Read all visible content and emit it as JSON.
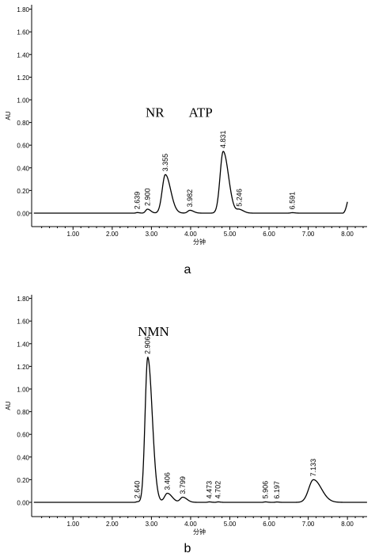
{
  "chart_data": [
    {
      "type": "line",
      "panel_label": "a",
      "xlabel": "分钟",
      "ylabel": "AU",
      "xlim": [
        0.0,
        8.5
      ],
      "ylim": [
        0.0,
        1.8
      ],
      "xticks": [
        "1.00",
        "2.00",
        "3.00",
        "4.00",
        "5.00",
        "6.00",
        "7.00",
        "8.00"
      ],
      "yticks": [
        "0.00",
        "0.20",
        "0.40",
        "0.60",
        "0.80",
        "1.00",
        "1.20",
        "1.40",
        "1.60",
        "1.80"
      ],
      "grid": false,
      "baseline": 0.0,
      "trace_end": {
        "x": 8.0,
        "y": 0.1
      },
      "peaks": [
        {
          "rt": 2.639,
          "label": "2.639",
          "height": 0.005,
          "width": 0.04
        },
        {
          "rt": 2.9,
          "label": "2.900",
          "height": 0.035,
          "width": 0.06
        },
        {
          "rt": 3.355,
          "label": "3.355",
          "height": 0.34,
          "width": 0.1
        },
        {
          "rt": 3.982,
          "label": "3.982",
          "height": 0.025,
          "width": 0.07
        },
        {
          "rt": 4.831,
          "label": "4.831",
          "height": 0.545,
          "width": 0.1
        },
        {
          "rt": 5.246,
          "label": "5.246",
          "height": 0.03,
          "width": 0.08
        },
        {
          "rt": 6.591,
          "label": "6.591",
          "height": 0.004,
          "width": 0.05
        }
      ],
      "annotations": [
        {
          "text": "NR",
          "x": 2.85,
          "y": 0.85
        },
        {
          "text": "ATP",
          "x": 3.95,
          "y": 0.85
        }
      ]
    },
    {
      "type": "line",
      "panel_label": "b",
      "xlabel": "分钟",
      "ylabel": "AU",
      "xlim": [
        0.0,
        8.5
      ],
      "ylim": [
        0.0,
        1.8
      ],
      "xticks": [
        "1.00",
        "2.00",
        "3.00",
        "4.00",
        "5.00",
        "6.00",
        "7.00",
        "8.00"
      ],
      "yticks": [
        "0.00",
        "0.20",
        "0.40",
        "0.60",
        "0.80",
        "1.00",
        "1.20",
        "1.40",
        "1.60",
        "1.80"
      ],
      "grid": false,
      "baseline": 0.0,
      "trace_end": {
        "x": 8.5,
        "y": 0.0
      },
      "peaks": [
        {
          "rt": 2.64,
          "label": "2.640",
          "height": 0.005,
          "width": 0.04
        },
        {
          "rt": 2.906,
          "label": "2.906",
          "height": 1.28,
          "width": 0.085
        },
        {
          "rt": 3.406,
          "label": "3.406",
          "height": 0.08,
          "width": 0.09
        },
        {
          "rt": 3.799,
          "label": "3.799",
          "height": 0.045,
          "width": 0.08
        },
        {
          "rt": 4.473,
          "label": "4.473",
          "height": 0.004,
          "width": 0.04
        },
        {
          "rt": 4.702,
          "label": "4.702",
          "height": 0.004,
          "width": 0.04
        },
        {
          "rt": 5.906,
          "label": "5.906",
          "height": 0.004,
          "width": 0.04
        },
        {
          "rt": 6.197,
          "label": "6.197",
          "height": 0.003,
          "width": 0.04
        },
        {
          "rt": 7.133,
          "label": "7.133",
          "height": 0.2,
          "width": 0.15
        }
      ],
      "annotations": [
        {
          "text": "NMN",
          "x": 2.65,
          "y": 1.47
        }
      ]
    }
  ]
}
